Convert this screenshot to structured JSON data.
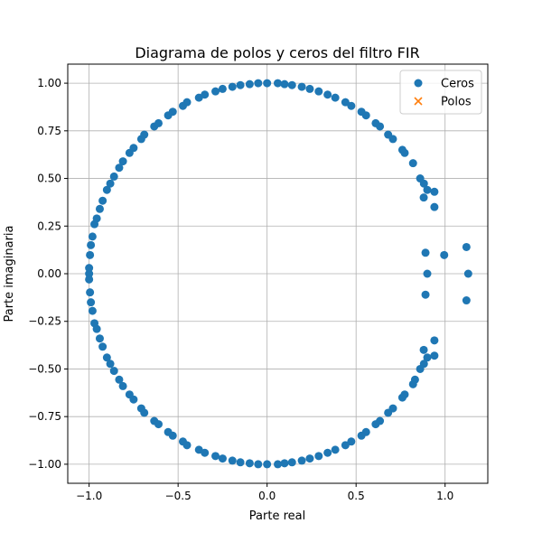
{
  "chart_data": {
    "type": "scatter",
    "title": "Diagrama de polos y ceros del filtro FIR",
    "xlabel": "Parte real",
    "ylabel": "Parte imaginaria",
    "xlim": [
      -1.12,
      1.24
    ],
    "ylim": [
      -1.1,
      1.1
    ],
    "xticks": [
      -1.0,
      -0.5,
      0.0,
      0.5,
      1.0
    ],
    "xtick_labels": [
      "−1.0",
      "−0.5",
      "0.0",
      "0.5",
      "1.0"
    ],
    "yticks": [
      -1.0,
      -0.75,
      -0.5,
      -0.25,
      0.0,
      0.25,
      0.5,
      0.75,
      1.0
    ],
    "ytick_labels": [
      "−1.00",
      "−0.75",
      "−0.50",
      "−0.25",
      "0.00",
      "0.25",
      "0.50",
      "0.75",
      "1.00"
    ],
    "grid": true,
    "legend_position": "top-right",
    "series": [
      {
        "name": "Ceros",
        "marker": "circle",
        "color": "#1f77b4",
        "points": [
          [
            0.995,
            0.098
          ],
          [
            0.881,
            0.473
          ],
          [
            0.773,
            0.634
          ],
          [
            0.707,
            0.707
          ],
          [
            0.634,
            0.773
          ],
          [
            0.556,
            0.831
          ],
          [
            0.473,
            0.881
          ],
          [
            0.383,
            0.924
          ],
          [
            0.29,
            0.957
          ],
          [
            0.195,
            0.981
          ],
          [
            0.098,
            0.995
          ],
          [
            0.0,
            1.0
          ],
          [
            -0.098,
            0.995
          ],
          [
            -0.195,
            0.981
          ],
          [
            -0.29,
            0.957
          ],
          [
            -0.383,
            0.924
          ],
          [
            -0.473,
            0.881
          ],
          [
            -0.556,
            0.831
          ],
          [
            -0.634,
            0.773
          ],
          [
            -0.707,
            0.707
          ],
          [
            -0.773,
            0.634
          ],
          [
            -0.831,
            0.556
          ],
          [
            -0.881,
            0.473
          ],
          [
            -0.924,
            0.383
          ],
          [
            -0.957,
            0.29
          ],
          [
            -0.981,
            0.195
          ],
          [
            -0.995,
            0.098
          ],
          [
            -1.0,
            0.0
          ],
          [
            -0.995,
            -0.098
          ],
          [
            -0.981,
            -0.195
          ],
          [
            -0.957,
            -0.29
          ],
          [
            -0.924,
            -0.383
          ],
          [
            -0.881,
            -0.473
          ],
          [
            -0.831,
            -0.556
          ],
          [
            -0.773,
            -0.634
          ],
          [
            -0.707,
            -0.707
          ],
          [
            -0.634,
            -0.773
          ],
          [
            -0.556,
            -0.831
          ],
          [
            -0.473,
            -0.881
          ],
          [
            -0.383,
            -0.924
          ],
          [
            -0.29,
            -0.957
          ],
          [
            -0.195,
            -0.981
          ],
          [
            -0.098,
            -0.995
          ],
          [
            0.0,
            -1.0
          ],
          [
            0.098,
            -0.995
          ],
          [
            0.195,
            -0.981
          ],
          [
            0.29,
            -0.957
          ],
          [
            0.383,
            -0.924
          ],
          [
            0.473,
            -0.881
          ],
          [
            0.556,
            -0.831
          ],
          [
            0.634,
            -0.773
          ],
          [
            0.707,
            -0.707
          ],
          [
            0.773,
            -0.634
          ],
          [
            0.831,
            -0.556
          ],
          [
            0.881,
            -0.473
          ],
          [
            0.06,
            1.0
          ],
          [
            0.14,
            0.99
          ],
          [
            0.24,
            0.97
          ],
          [
            0.34,
            0.94
          ],
          [
            0.44,
            0.9
          ],
          [
            0.53,
            0.85
          ],
          [
            0.61,
            0.79
          ],
          [
            0.68,
            0.73
          ],
          [
            0.76,
            0.65
          ],
          [
            0.82,
            0.58
          ],
          [
            0.86,
            0.5
          ],
          [
            0.06,
            -1.0
          ],
          [
            0.14,
            -0.99
          ],
          [
            0.24,
            -0.97
          ],
          [
            0.34,
            -0.94
          ],
          [
            0.44,
            -0.9
          ],
          [
            0.53,
            -0.85
          ],
          [
            0.61,
            -0.79
          ],
          [
            0.68,
            -0.73
          ],
          [
            0.76,
            -0.65
          ],
          [
            0.82,
            -0.58
          ],
          [
            0.86,
            -0.5
          ],
          [
            -0.05,
            1.0
          ],
          [
            -0.15,
            0.99
          ],
          [
            -0.25,
            0.97
          ],
          [
            -0.35,
            0.94
          ],
          [
            -0.45,
            0.9
          ],
          [
            -0.53,
            0.85
          ],
          [
            -0.61,
            0.79
          ],
          [
            -0.69,
            0.73
          ],
          [
            -0.75,
            0.66
          ],
          [
            -0.81,
            0.59
          ],
          [
            -0.86,
            0.51
          ],
          [
            -0.9,
            0.44
          ],
          [
            -0.94,
            0.34
          ],
          [
            -0.97,
            0.26
          ],
          [
            -0.99,
            0.15
          ],
          [
            -1.0,
            0.03
          ],
          [
            -0.05,
            -1.0
          ],
          [
            -0.15,
            -0.99
          ],
          [
            -0.25,
            -0.97
          ],
          [
            -0.35,
            -0.94
          ],
          [
            -0.45,
            -0.9
          ],
          [
            -0.53,
            -0.85
          ],
          [
            -0.61,
            -0.79
          ],
          [
            -0.69,
            -0.73
          ],
          [
            -0.75,
            -0.66
          ],
          [
            -0.81,
            -0.59
          ],
          [
            -0.86,
            -0.51
          ],
          [
            -0.9,
            -0.44
          ],
          [
            -0.94,
            -0.34
          ],
          [
            -0.97,
            -0.26
          ],
          [
            -0.99,
            -0.15
          ],
          [
            -1.0,
            -0.03
          ],
          [
            0.88,
            0.4
          ],
          [
            0.9,
            0.44
          ],
          [
            0.94,
            0.43
          ],
          [
            0.94,
            0.35
          ],
          [
            0.88,
            -0.4
          ],
          [
            0.9,
            -0.44
          ],
          [
            0.94,
            -0.43
          ],
          [
            0.94,
            -0.35
          ],
          [
            0.89,
            0.11
          ],
          [
            0.9,
            0.0
          ],
          [
            0.89,
            -0.11
          ],
          [
            1.12,
            0.14
          ],
          [
            1.13,
            0.0
          ],
          [
            1.12,
            -0.14
          ]
        ]
      },
      {
        "name": "Polos",
        "marker": "x",
        "color": "#ff7f0e",
        "points": []
      }
    ]
  }
}
